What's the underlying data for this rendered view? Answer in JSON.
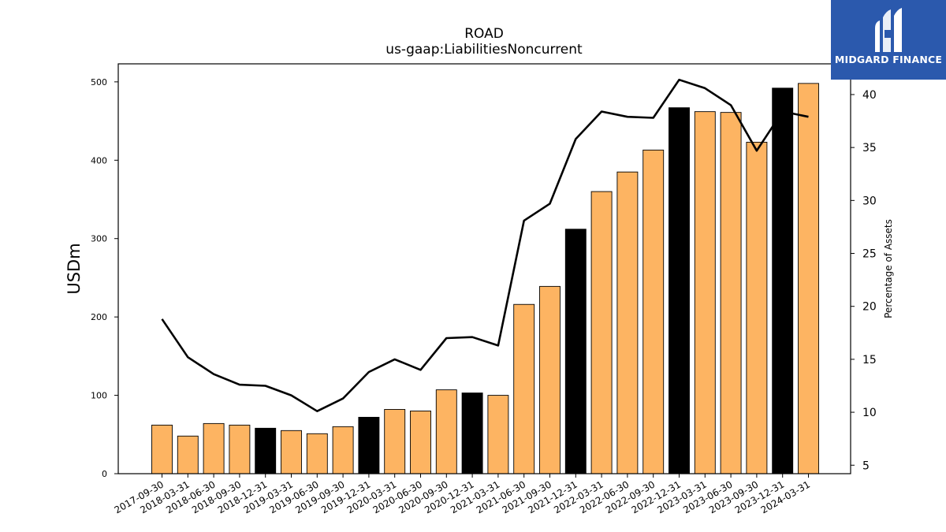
{
  "logo": {
    "text": "MIDGARD FINANCE"
  },
  "chart_data": {
    "type": "bar",
    "title": "ROAD",
    "subtitle": "us-gaap:LiabilitiesNoncurrent",
    "ylabel": "USDm",
    "y2label": "Percentage of Assets",
    "ylim": [
      0,
      523
    ],
    "y2lim": [
      4.2,
      42.9
    ],
    "yticks": [
      0,
      100,
      200,
      300,
      400,
      500
    ],
    "y2ticks": [
      5,
      10,
      15,
      20,
      25,
      30,
      35,
      40
    ],
    "colors": {
      "bar": "#fdb462",
      "bar_q4": "#000000",
      "line": "#000000",
      "logo_bg": "#2b59ad"
    },
    "categories": [
      "2017-09-30",
      "2018-03-31",
      "2018-06-30",
      "2018-09-30",
      "2018-12-31",
      "2019-03-31",
      "2019-06-30",
      "2019-09-30",
      "2019-12-31",
      "2020-03-31",
      "2020-06-30",
      "2020-09-30",
      "2020-12-31",
      "2021-03-31",
      "2021-06-30",
      "2021-09-30",
      "2021-12-31",
      "2022-03-31",
      "2022-06-30",
      "2022-09-30",
      "2022-12-31",
      "2023-03-31",
      "2023-06-30",
      "2023-09-30",
      "2023-12-31",
      "2024-03-31"
    ],
    "series": [
      {
        "type": "bar",
        "values": [
          62,
          48,
          64,
          62,
          58,
          55,
          51,
          60,
          72,
          82,
          80,
          107,
          103,
          100,
          216,
          239,
          312,
          360,
          385,
          413,
          467,
          462,
          461,
          423,
          492,
          498
        ],
        "highlight": [
          false,
          false,
          false,
          false,
          true,
          false,
          false,
          false,
          true,
          false,
          false,
          false,
          true,
          false,
          false,
          false,
          true,
          false,
          false,
          false,
          true,
          false,
          false,
          false,
          true,
          false
        ]
      },
      {
        "type": "line",
        "axis": "right",
        "values": [
          18.8,
          15.2,
          13.6,
          12.6,
          12.5,
          11.6,
          10.1,
          11.3,
          13.8,
          15.0,
          14.0,
          17.0,
          17.1,
          16.3,
          28.1,
          29.7,
          35.8,
          38.4,
          37.9,
          37.8,
          41.4,
          40.6,
          39.0,
          34.7,
          38.4,
          37.9
        ]
      }
    ]
  }
}
